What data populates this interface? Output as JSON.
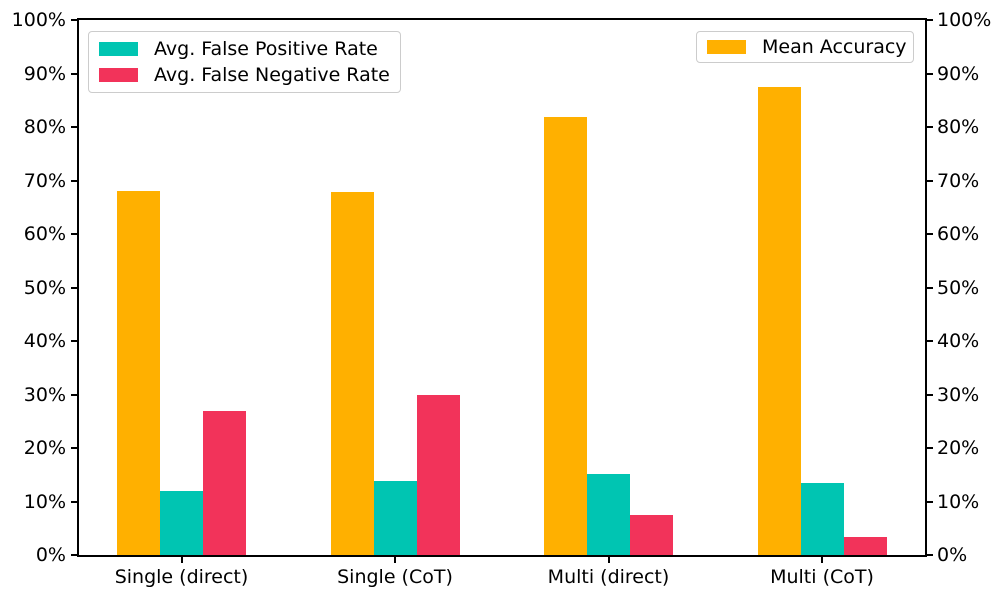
{
  "figure": {
    "background": "#ffffff",
    "text_color": "#000000"
  },
  "chart_data": {
    "type": "bar",
    "title": "",
    "xlabel": "",
    "ylabel": "",
    "categories": [
      "Single (direct)",
      "Single (CoT)",
      "Multi (direct)",
      "Multi (CoT)"
    ],
    "series": [
      {
        "name": "Mean Accuracy",
        "values": [
          68.1,
          67.8,
          81.8,
          87.5
        ],
        "color": "#FFB000",
        "legend": "upper-right",
        "axis": "right"
      },
      {
        "name": "Avg. False Positive Rate",
        "values": [
          12.0,
          13.9,
          15.1,
          13.5
        ],
        "color": "#00C5B2",
        "legend": "upper-left",
        "axis": "left"
      },
      {
        "name": "Avg. False Negative Rate",
        "values": [
          27.0,
          30.0,
          7.4,
          3.4
        ],
        "color": "#F2335A",
        "legend": "upper-left",
        "axis": "left"
      }
    ],
    "ylim": [
      0,
      100
    ],
    "ytick_values": [
      0,
      10,
      20,
      30,
      40,
      50,
      60,
      70,
      80,
      90,
      100
    ],
    "ytick_labels": [
      "0%",
      "10%",
      "20%",
      "30%",
      "40%",
      "50%",
      "60%",
      "70%",
      "80%",
      "90%",
      "100%"
    ],
    "dual_y_axis": true,
    "grid": false,
    "legend_left_entries": [
      "Avg. False Positive Rate",
      "Avg. False Negative Rate"
    ],
    "legend_right_entries": [
      "Mean Accuracy"
    ]
  }
}
